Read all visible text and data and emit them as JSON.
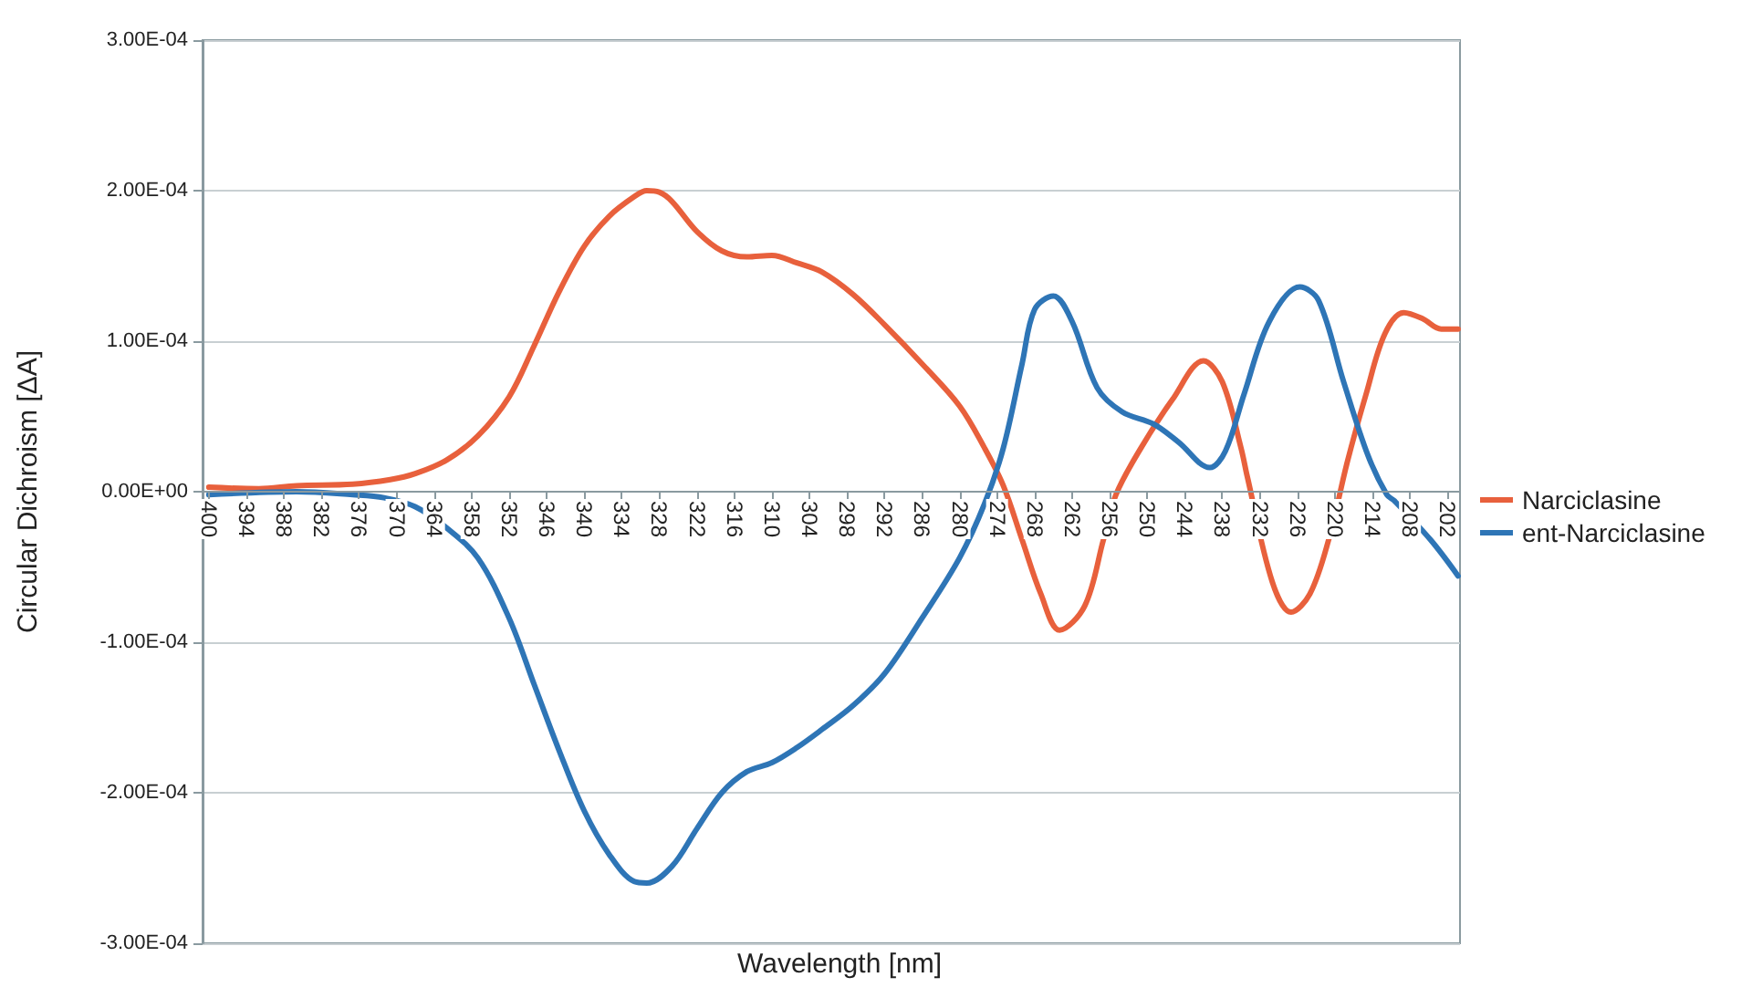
{
  "chart_data": {
    "type": "line",
    "xlabel": "Wavelength [nm]",
    "ylabel": "Circular Dichroism [ΔA]",
    "xlim": [
      401,
      200
    ],
    "xticks": [
      400,
      394,
      388,
      382,
      376,
      370,
      364,
      358,
      352,
      346,
      340,
      334,
      328,
      322,
      316,
      310,
      304,
      298,
      292,
      286,
      280,
      274,
      268,
      262,
      256,
      250,
      244,
      238,
      232,
      226,
      220,
      214,
      208,
      202
    ],
    "ylim": [
      -0.0003,
      0.0003
    ],
    "yticks": [
      {
        "value": -0.0003,
        "label": "-3.00E-04"
      },
      {
        "value": -0.0002,
        "label": "-2.00E-04"
      },
      {
        "value": -0.0001,
        "label": "-1.00E-04"
      },
      {
        "value": 0,
        "label": "0.00E+00"
      },
      {
        "value": 0.0001,
        "label": "1.00E-04"
      },
      {
        "value": 0.0002,
        "label": "2.00E-04"
      },
      {
        "value": 0.0003,
        "label": "3.00E-04"
      }
    ],
    "grid": "y",
    "legend": "right",
    "marker": "none",
    "line_style": "solid",
    "series": [
      {
        "name": "Narciclasine",
        "color": "#e8603c",
        "x": [
          400,
          392,
          386,
          377,
          371,
          367,
          362,
          357,
          352,
          348,
          344,
          340,
          336,
          332,
          330,
          328,
          326,
          322,
          318,
          314,
          310,
          306,
          302,
          297,
          292,
          286,
          280,
          276,
          273,
          270,
          267,
          264,
          260,
          257,
          255,
          251,
          246,
          241,
          238,
          235,
          234,
          230,
          227,
          224,
          221,
          218,
          215,
          212,
          209,
          206,
          203,
          200.3
        ],
        "values": [
          3e-06,
          2e-06,
          4e-06,
          5e-06,
          8e-06,
          1.2e-05,
          2.1e-05,
          3.7e-05,
          6.3e-05,
          9.7e-05,
          0.000133,
          0.000163,
          0.000183,
          0.000196,
          0.0002,
          0.000199,
          0.000193,
          0.000173,
          0.00016,
          0.000156,
          0.000157,
          0.000152,
          0.000146,
          0.000131,
          0.000111,
          8.5e-05,
          5.7e-05,
          2.9e-05,
          4e-06,
          -3.2e-05,
          -6.8e-05,
          -9.2e-05,
          -7.6e-05,
          -3.2e-05,
          -2e-06,
          2.9e-05,
          6.1e-05,
          8.7e-05,
          7.3e-05,
          2.9e-05,
          1e-05,
          -6e-05,
          -8e-05,
          -6.8e-05,
          -3.2e-05,
          2e-05,
          6.5e-05,
          0.000105,
          0.000119,
          0.000115,
          0.000108,
          0.000108
        ]
      },
      {
        "name": "ent-Narciclasine",
        "color": "#2e75b6",
        "x": [
          400,
          386,
          377,
          372,
          367,
          362,
          357,
          352,
          348,
          344,
          340,
          336,
          332,
          330,
          326,
          322,
          318,
          314,
          310,
          306,
          302,
          297,
          292,
          286,
          280,
          276,
          273,
          270,
          268,
          265,
          262,
          258,
          254,
          249,
          245,
          240,
          237.5,
          234.5,
          230.5,
          225.6,
          222.6,
          218.6,
          214.7,
          211.7,
          210.5,
          204.7,
          200.3
        ],
        "values": [
          -2e-06,
          0,
          -2e-06,
          -4e-06,
          -1e-05,
          -2.4e-05,
          -4.4e-05,
          -8.4e-05,
          -0.000128,
          -0.000172,
          -0.000212,
          -0.000241,
          -0.000259,
          -0.00026,
          -0.000249,
          -0.000224,
          -0.0002,
          -0.000186,
          -0.00018,
          -0.00017,
          -0.000158,
          -0.000142,
          -0.000121,
          -8.4e-05,
          -4.4e-05,
          -8e-06,
          2.9e-05,
          8.5e-05,
          0.000121,
          0.00013,
          0.000113,
          6.9e-05,
          5.3e-05,
          4.5e-05,
          3.3e-05,
          1.6e-05,
          2.7e-05,
          6.5e-05,
          0.000113,
          0.000136,
          0.000127,
          7.3e-05,
          2.4e-05,
          -2e-06,
          -6e-06,
          -3.2e-05,
          -5.6e-05
        ]
      }
    ]
  }
}
